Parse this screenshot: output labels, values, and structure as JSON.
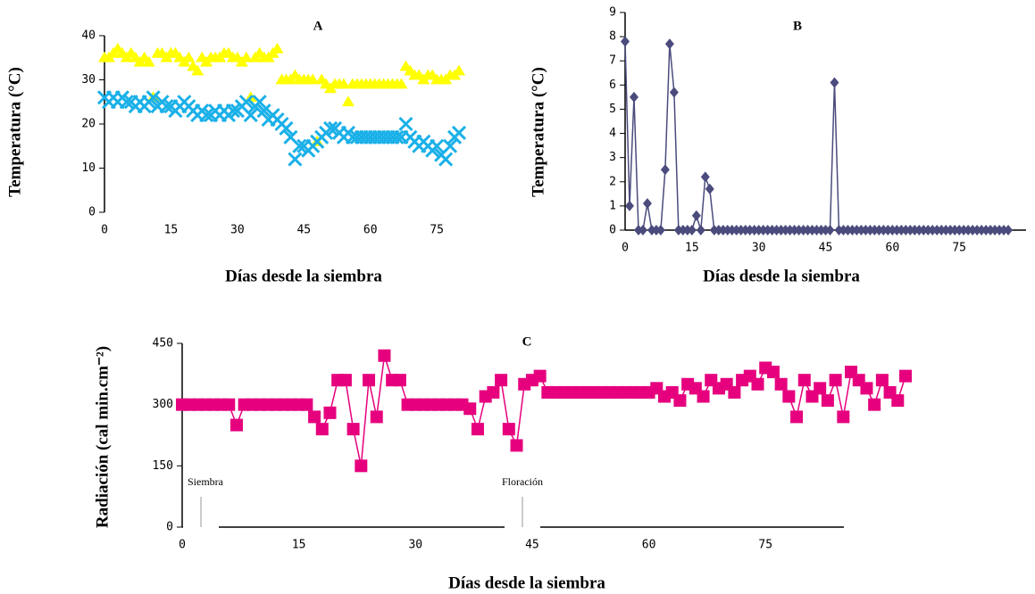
{
  "chart_data": [
    {
      "type": "scatter",
      "title": "A",
      "x_label": "Días desde la siembra",
      "y_label": "Temperatura (°C)",
      "x": [
        0,
        1,
        2,
        3,
        4,
        5,
        6,
        7,
        8,
        9,
        10,
        11,
        12,
        13,
        14,
        15,
        16,
        17,
        18,
        19,
        20,
        21,
        22,
        23,
        24,
        25,
        26,
        27,
        28,
        29,
        30,
        31,
        32,
        33,
        34,
        35,
        36,
        37,
        38,
        39,
        40,
        41,
        42,
        43,
        44,
        45,
        46,
        47,
        48,
        49,
        50,
        51,
        52,
        53,
        54,
        55,
        56,
        57,
        58,
        59,
        60,
        61,
        62,
        63,
        64,
        65,
        66,
        67,
        68,
        69,
        70,
        71,
        72,
        73,
        74,
        75,
        76,
        77,
        78,
        79,
        80
      ],
      "series": [
        {
          "color": "#ffff00",
          "marker": "triangle",
          "values": [
            35,
            35,
            36,
            37,
            36,
            35,
            36,
            35,
            34,
            35,
            34,
            26,
            36,
            36,
            35,
            36,
            36,
            35,
            34,
            35,
            33,
            32,
            35,
            34,
            35,
            35,
            35,
            36,
            36,
            35,
            35,
            34,
            35,
            26,
            35,
            36,
            35,
            35,
            36,
            37,
            30,
            30,
            30,
            31,
            30,
            30,
            30,
            30,
            16,
            30,
            29,
            28,
            29,
            29,
            29,
            25,
            29,
            29,
            29,
            29,
            29,
            29,
            29,
            29,
            29,
            29,
            29,
            29,
            33,
            32,
            31,
            31,
            30,
            31,
            31,
            30,
            30,
            30,
            31,
            31,
            32
          ]
        },
        {
          "color": "#1ab0e8",
          "marker": "cross",
          "values": [
            26,
            25,
            26,
            25,
            26,
            25,
            25,
            24,
            25,
            24,
            25,
            26,
            24,
            25,
            24,
            24,
            23,
            24,
            25,
            24,
            23,
            22,
            23,
            22,
            22,
            23,
            22,
            23,
            22,
            23,
            23,
            24,
            25,
            22,
            24,
            25,
            23,
            21,
            22,
            21,
            20,
            19,
            17,
            12,
            15,
            15,
            14,
            15,
            16,
            17,
            18,
            19,
            19,
            18,
            17,
            18,
            17,
            17,
            17,
            17,
            17,
            17,
            17,
            17,
            17,
            17,
            17,
            17,
            20,
            17,
            16,
            15,
            16,
            15,
            14,
            15,
            13,
            12,
            15,
            17,
            18
          ]
        }
      ],
      "xlim": [
        0,
        80
      ],
      "xticks": [
        0,
        15,
        30,
        45,
        60,
        75
      ],
      "ylim": [
        0,
        40
      ],
      "yticks": [
        0,
        10,
        20,
        30,
        40
      ]
    },
    {
      "type": "line",
      "title": "B",
      "x_label": "Días desde la siembra",
      "y_label": "Temperatura (°C)",
      "x": [
        0,
        1,
        2,
        3,
        4,
        5,
        6,
        7,
        8,
        9,
        10,
        11,
        12,
        13,
        14,
        15,
        16,
        17,
        18,
        19,
        20,
        21,
        22,
        23,
        24,
        25,
        26,
        27,
        28,
        29,
        30,
        31,
        32,
        33,
        34,
        35,
        36,
        37,
        38,
        39,
        40,
        41,
        42,
        43,
        44,
        45,
        46,
        47,
        48,
        49,
        50,
        51,
        52,
        53,
        54,
        55,
        56,
        57,
        58,
        59,
        60,
        61,
        62,
        63,
        64,
        65,
        66,
        67,
        68,
        69,
        70,
        71,
        72,
        73,
        74,
        75,
        76,
        77,
        78,
        79,
        80,
        81,
        82,
        83,
        84,
        85,
        86
      ],
      "series": [
        {
          "color": "#4b4b7d",
          "marker": "diamond",
          "values": [
            7.8,
            1,
            5.5,
            0,
            0,
            1.1,
            0,
            0,
            0,
            2.5,
            7.7,
            5.7,
            0,
            0,
            0,
            0,
            0.6,
            0,
            2.2,
            1.7,
            0,
            0,
            0,
            0,
            0,
            0,
            0,
            0,
            0,
            0,
            0,
            0,
            0,
            0,
            0,
            0,
            0,
            0,
            0,
            0,
            0,
            0,
            0,
            0,
            0,
            0,
            0,
            6.1,
            0,
            0,
            0,
            0,
            0,
            0,
            0,
            0,
            0,
            0,
            0,
            0,
            0,
            0,
            0,
            0,
            0,
            0,
            0,
            0,
            0,
            0,
            0,
            0,
            0,
            0,
            0,
            0,
            0,
            0,
            0,
            0,
            0,
            0,
            0,
            0,
            0,
            0,
            0
          ]
        }
      ],
      "xlim": [
        0,
        90
      ],
      "xticks": [
        0,
        15,
        30,
        45,
        60,
        75
      ],
      "ylim": [
        0,
        9
      ],
      "yticks": [
        0,
        1,
        2,
        3,
        4,
        5,
        6,
        7,
        8,
        9
      ]
    },
    {
      "type": "line",
      "title": "C",
      "x_label": "Días desde la siembra",
      "y_label": "Radiación (cal min.cm⁻²)",
      "annotations": [
        "Siembra",
        "Floración"
      ],
      "x": [
        0,
        1,
        2,
        3,
        4,
        5,
        6,
        7,
        8,
        9,
        10,
        11,
        12,
        13,
        14,
        15,
        16,
        17,
        18,
        19,
        20,
        21,
        22,
        23,
        24,
        25,
        26,
        27,
        28,
        29,
        30,
        31,
        32,
        33,
        34,
        35,
        36,
        37,
        38,
        39,
        40,
        41,
        42,
        43,
        44,
        45,
        46,
        47,
        48,
        49,
        50,
        51,
        52,
        53,
        54,
        55,
        56,
        57,
        58,
        59,
        60,
        61,
        62,
        63,
        64,
        65,
        66,
        67,
        68,
        69,
        70,
        71,
        72,
        73,
        74,
        75,
        76,
        77,
        78,
        79,
        80,
        81,
        82,
        83,
        84,
        85,
        86,
        87,
        88,
        89,
        90,
        91,
        92,
        93
      ],
      "series": [
        {
          "color": "#e6007e",
          "marker": "square",
          "values": [
            300,
            300,
            300,
            300,
            300,
            300,
            300,
            250,
            300,
            300,
            300,
            300,
            300,
            300,
            300,
            300,
            300,
            270,
            240,
            280,
            360,
            360,
            240,
            150,
            360,
            270,
            420,
            360,
            360,
            300,
            300,
            300,
            300,
            300,
            300,
            300,
            300,
            290,
            240,
            320,
            330,
            360,
            240,
            200,
            350,
            360,
            370,
            330,
            330,
            330,
            330,
            330,
            330,
            330,
            330,
            330,
            330,
            330,
            330,
            330,
            330,
            340,
            320,
            330,
            310,
            350,
            340,
            320,
            360,
            340,
            350,
            330,
            360,
            370,
            350,
            390,
            380,
            350,
            320,
            270,
            360,
            320,
            340,
            310,
            360,
            270,
            380,
            360,
            340,
            300,
            360,
            330,
            310,
            370
          ]
        }
      ],
      "xlim": [
        0,
        93
      ],
      "xticks": [
        0,
        15,
        30,
        45,
        60,
        75
      ],
      "ylim": [
        0,
        450
      ],
      "yticks": [
        0,
        150,
        300,
        450
      ]
    }
  ]
}
